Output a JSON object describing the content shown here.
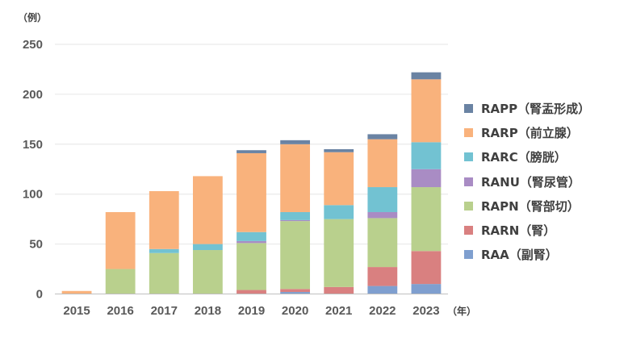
{
  "chart_data": {
    "type": "bar",
    "stacked": true,
    "y_unit": "（例）",
    "x_unit": "（年）",
    "categories": [
      "2015",
      "2016",
      "2017",
      "2018",
      "2019",
      "2020",
      "2021",
      "2022",
      "2023"
    ],
    "ylim": [
      0,
      250
    ],
    "yticks": [
      "0",
      "50",
      "100",
      "150",
      "200",
      "250"
    ],
    "grid": true,
    "legend_position": "right",
    "series": [
      {
        "name": "RAA（副腎）",
        "color": "#7f9fcf",
        "values": [
          0,
          0,
          0,
          0,
          0,
          2,
          0,
          8,
          10
        ]
      },
      {
        "name": "RARN（腎）",
        "color": "#d98080",
        "values": [
          0,
          0,
          0,
          0,
          4,
          3,
          7,
          19,
          33
        ]
      },
      {
        "name": "RAPN（腎部切）",
        "color": "#b9d08d",
        "values": [
          0,
          25,
          41,
          44,
          47,
          68,
          68,
          49,
          64
        ]
      },
      {
        "name": "RANU（腎尿管）",
        "color": "#a98cc4",
        "values": [
          0,
          0,
          0,
          0,
          2,
          1,
          0,
          6,
          18
        ]
      },
      {
        "name": "RARC（膀胱）",
        "color": "#72c2d2",
        "values": [
          0,
          0,
          4,
          6,
          9,
          8,
          14,
          25,
          27
        ]
      },
      {
        "name": "RARP（前立腺）",
        "color": "#f9b27c",
        "values": [
          3,
          57,
          58,
          68,
          79,
          68,
          53,
          48,
          63
        ]
      },
      {
        "name": "RAPP（腎盂形成）",
        "color": "#6a83a3",
        "values": [
          0,
          0,
          0,
          0,
          3,
          4,
          3,
          5,
          7
        ]
      }
    ]
  }
}
